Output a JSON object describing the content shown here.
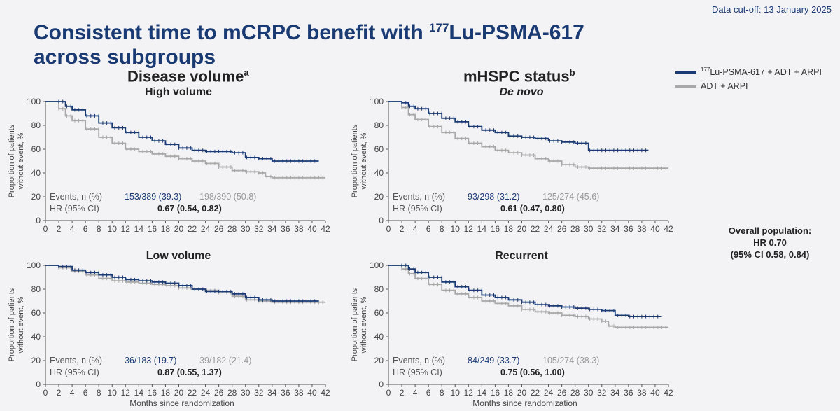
{
  "header": {
    "cutoff": "Data cut-off: 13 January 2025",
    "title_line1_pre": "Consistent time to mCRPC benefit with ",
    "title_sup": "177",
    "title_line1_post": "Lu-PSMA-617",
    "title_line2": "across subgroups"
  },
  "sections": {
    "left": {
      "label": "Disease volume",
      "sup": "a"
    },
    "right": {
      "label": "mHSPC status",
      "sup": "b"
    }
  },
  "legend": {
    "treatment": {
      "sup": "177",
      "label": "Lu-PSMA-617 + ADT + ARPI",
      "color": "#1a3a73"
    },
    "control": {
      "label": "ADT + ARPI",
      "color": "#a8a8a8"
    }
  },
  "overall": {
    "line1": "Overall population:",
    "line2": "HR 0.70",
    "line3": "(95% CI 0.58, 0.84)"
  },
  "chart_data": [
    {
      "type": "line",
      "title": "High volume",
      "xlabel": "",
      "ylabel": "Proportion of patients without event, %",
      "xlim": [
        0,
        42
      ],
      "ylim": [
        0,
        100
      ],
      "xticks": [
        0,
        2,
        4,
        6,
        8,
        10,
        12,
        14,
        16,
        18,
        20,
        22,
        24,
        26,
        28,
        30,
        32,
        34,
        36,
        38,
        40,
        42
      ],
      "yticks": [
        0,
        20,
        40,
        60,
        80,
        100
      ],
      "series": [
        {
          "name": "177Lu-PSMA-617 + ADT + ARPI",
          "color": "#1a3a73",
          "end_x": 41,
          "points": [
            [
              0,
              100
            ],
            [
              2,
              100
            ],
            [
              3,
              96
            ],
            [
              4,
              93
            ],
            [
              6,
              88
            ],
            [
              8,
              82
            ],
            [
              10,
              78
            ],
            [
              12,
              74
            ],
            [
              14,
              70
            ],
            [
              16,
              67
            ],
            [
              18,
              64
            ],
            [
              20,
              61
            ],
            [
              22,
              59
            ],
            [
              24,
              58
            ],
            [
              26,
              58
            ],
            [
              28,
              57
            ],
            [
              30,
              53
            ],
            [
              32,
              52
            ],
            [
              34,
              50
            ],
            [
              36,
              50
            ],
            [
              38,
              50
            ],
            [
              41,
              50
            ]
          ]
        },
        {
          "name": "ADT + ARPI",
          "color": "#a8a8a8",
          "end_x": 42,
          "points": [
            [
              0,
              100
            ],
            [
              2,
              94
            ],
            [
              3,
              88
            ],
            [
              4,
              84
            ],
            [
              6,
              77
            ],
            [
              8,
              70
            ],
            [
              10,
              65
            ],
            [
              12,
              60
            ],
            [
              14,
              58
            ],
            [
              16,
              56
            ],
            [
              18,
              54
            ],
            [
              20,
              52
            ],
            [
              22,
              50
            ],
            [
              24,
              48
            ],
            [
              26,
              45
            ],
            [
              28,
              42
            ],
            [
              30,
              41
            ],
            [
              32,
              40
            ],
            [
              33,
              37
            ],
            [
              34,
              36
            ],
            [
              36,
              36
            ],
            [
              38,
              36
            ],
            [
              42,
              36
            ]
          ]
        }
      ],
      "events": {
        "label": "Events, n (%)",
        "treatment": "153/389 (39.3)",
        "control": "198/390 (50.8)"
      },
      "hr": {
        "label": "HR (95% CI)",
        "value": "0.67 (0.54, 0.82)"
      }
    },
    {
      "type": "line",
      "title": "De novo",
      "xlabel": "",
      "ylabel": "Proportion of patients without event, %",
      "xlim": [
        0,
        42
      ],
      "ylim": [
        0,
        100
      ],
      "xticks": [
        0,
        2,
        4,
        6,
        8,
        10,
        12,
        14,
        16,
        18,
        20,
        22,
        24,
        26,
        28,
        30,
        32,
        34,
        36,
        38,
        40,
        42
      ],
      "yticks": [
        0,
        20,
        40,
        60,
        80,
        100
      ],
      "series": [
        {
          "name": "177Lu-PSMA-617 + ADT + ARPI",
          "color": "#1a3a73",
          "end_x": 39,
          "points": [
            [
              0,
              100
            ],
            [
              2,
              99
            ],
            [
              3,
              96
            ],
            [
              4,
              94
            ],
            [
              6,
              90
            ],
            [
              8,
              86
            ],
            [
              10,
              83
            ],
            [
              12,
              79
            ],
            [
              14,
              76
            ],
            [
              16,
              74
            ],
            [
              18,
              71
            ],
            [
              20,
              70
            ],
            [
              22,
              69
            ],
            [
              24,
              67
            ],
            [
              26,
              66
            ],
            [
              28,
              65
            ],
            [
              29,
              65
            ],
            [
              30,
              59
            ],
            [
              32,
              59
            ],
            [
              34,
              59
            ],
            [
              36,
              59
            ],
            [
              39,
              59
            ]
          ]
        },
        {
          "name": "ADT + ARPI",
          "color": "#a8a8a8",
          "end_x": 42,
          "points": [
            [
              0,
              100
            ],
            [
              2,
              95
            ],
            [
              3,
              89
            ],
            [
              4,
              85
            ],
            [
              6,
              79
            ],
            [
              8,
              74
            ],
            [
              10,
              69
            ],
            [
              12,
              65
            ],
            [
              14,
              62
            ],
            [
              16,
              59
            ],
            [
              18,
              57
            ],
            [
              20,
              55
            ],
            [
              22,
              52
            ],
            [
              24,
              50
            ],
            [
              26,
              47
            ],
            [
              28,
              45
            ],
            [
              30,
              44
            ],
            [
              32,
              44
            ],
            [
              34,
              44
            ],
            [
              36,
              44
            ],
            [
              38,
              44
            ],
            [
              42,
              44
            ]
          ]
        }
      ],
      "events": {
        "label": "Events, n (%)",
        "treatment": "93/298 (31.2)",
        "control": "125/274 (45.6)"
      },
      "hr": {
        "label": "HR (95% CI)",
        "value": "0.61 (0.47, 0.80)"
      }
    },
    {
      "type": "line",
      "title": "Low volume",
      "xlabel": "Months since randomization",
      "ylabel": "Proportion of patients without event, %",
      "xlim": [
        0,
        42
      ],
      "ylim": [
        0,
        100
      ],
      "xticks": [
        0,
        2,
        4,
        6,
        8,
        10,
        12,
        14,
        16,
        18,
        20,
        22,
        24,
        26,
        28,
        30,
        32,
        34,
        36,
        38,
        40,
        42
      ],
      "yticks": [
        0,
        20,
        40,
        60,
        80,
        100
      ],
      "series": [
        {
          "name": "177Lu-PSMA-617 + ADT + ARPI",
          "color": "#1a3a73",
          "end_x": 41,
          "points": [
            [
              0,
              100
            ],
            [
              2,
              99
            ],
            [
              4,
              96
            ],
            [
              6,
              94
            ],
            [
              8,
              92
            ],
            [
              10,
              90
            ],
            [
              12,
              88
            ],
            [
              14,
              87
            ],
            [
              16,
              86
            ],
            [
              18,
              85
            ],
            [
              20,
              83
            ],
            [
              22,
              80
            ],
            [
              24,
              78
            ],
            [
              26,
              78
            ],
            [
              28,
              76
            ],
            [
              30,
              73
            ],
            [
              32,
              71
            ],
            [
              34,
              70
            ],
            [
              36,
              70
            ],
            [
              38,
              70
            ],
            [
              41,
              70
            ]
          ]
        },
        {
          "name": "ADT + ARPI",
          "color": "#a8a8a8",
          "end_x": 42,
          "points": [
            [
              0,
              100
            ],
            [
              2,
              98
            ],
            [
              4,
              95
            ],
            [
              6,
              92
            ],
            [
              8,
              89
            ],
            [
              10,
              87
            ],
            [
              12,
              86
            ],
            [
              14,
              85
            ],
            [
              16,
              84
            ],
            [
              18,
              83
            ],
            [
              20,
              81
            ],
            [
              22,
              80
            ],
            [
              24,
              79
            ],
            [
              26,
              77
            ],
            [
              28,
              74
            ],
            [
              30,
              71
            ],
            [
              32,
              70
            ],
            [
              34,
              69
            ],
            [
              36,
              69
            ],
            [
              38,
              69
            ],
            [
              42,
              69
            ]
          ]
        }
      ],
      "events": {
        "label": "Events, n (%)",
        "treatment": "36/183 (19.7)",
        "control": "39/182 (21.4)"
      },
      "hr": {
        "label": "HR (95% CI)",
        "value": "0.87 (0.55, 1.37)"
      }
    },
    {
      "type": "line",
      "title": "Recurrent",
      "xlabel": "Months since randomization",
      "ylabel": "Proportion of patients without event, %",
      "xlim": [
        0,
        42
      ],
      "ylim": [
        0,
        100
      ],
      "xticks": [
        0,
        2,
        4,
        6,
        8,
        10,
        12,
        14,
        16,
        18,
        20,
        22,
        24,
        26,
        28,
        30,
        32,
        34,
        36,
        38,
        40,
        42
      ],
      "yticks": [
        0,
        20,
        40,
        60,
        80,
        100
      ],
      "series": [
        {
          "name": "177Lu-PSMA-617 + ADT + ARPI",
          "color": "#1a3a73",
          "end_x": 41,
          "points": [
            [
              0,
              100
            ],
            [
              2,
              100
            ],
            [
              3,
              97
            ],
            [
              4,
              94
            ],
            [
              6,
              90
            ],
            [
              8,
              86
            ],
            [
              10,
              82
            ],
            [
              12,
              79
            ],
            [
              14,
              75
            ],
            [
              16,
              73
            ],
            [
              18,
              71
            ],
            [
              20,
              69
            ],
            [
              22,
              67
            ],
            [
              24,
              66
            ],
            [
              26,
              65
            ],
            [
              28,
              64
            ],
            [
              30,
              63
            ],
            [
              32,
              62
            ],
            [
              34,
              58
            ],
            [
              36,
              57
            ],
            [
              38,
              57
            ],
            [
              41,
              57
            ]
          ]
        },
        {
          "name": "ADT + ARPI",
          "color": "#a8a8a8",
          "end_x": 42,
          "points": [
            [
              0,
              100
            ],
            [
              2,
              97
            ],
            [
              3,
              93
            ],
            [
              4,
              89
            ],
            [
              6,
              84
            ],
            [
              8,
              79
            ],
            [
              10,
              76
            ],
            [
              12,
              73
            ],
            [
              14,
              70
            ],
            [
              16,
              68
            ],
            [
              18,
              66
            ],
            [
              20,
              63
            ],
            [
              22,
              61
            ],
            [
              24,
              60
            ],
            [
              26,
              58
            ],
            [
              28,
              57
            ],
            [
              30,
              55
            ],
            [
              32,
              53
            ],
            [
              33,
              49
            ],
            [
              34,
              48
            ],
            [
              36,
              48
            ],
            [
              38,
              48
            ],
            [
              42,
              48
            ]
          ]
        }
      ],
      "events": {
        "label": "Events, n (%)",
        "treatment": "84/249 (33.7)",
        "control": "105/274 (38.3)"
      },
      "hr": {
        "label": "HR (95% CI)",
        "value": "0.75 (0.56, 1.00)"
      }
    }
  ]
}
